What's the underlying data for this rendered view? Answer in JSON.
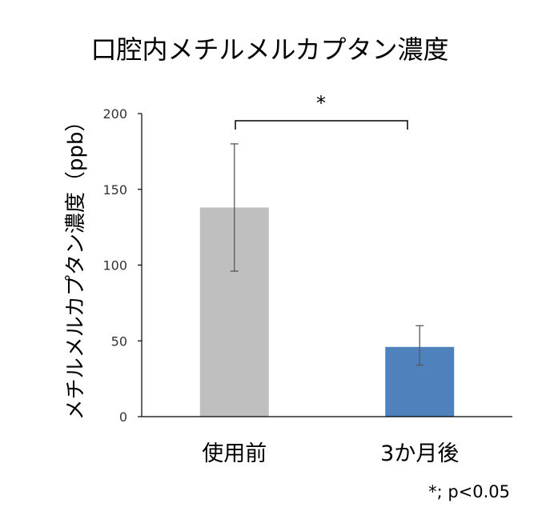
{
  "chart_data": {
    "type": "bar",
    "title": "口腔内メチルメルカプタン濃度",
    "xlabel": "",
    "ylabel": "メチルメルカプタン濃度（ppb）",
    "ylim": [
      0,
      200
    ],
    "yticks": [
      0,
      50,
      100,
      150,
      200
    ],
    "categories": [
      "使用前",
      "3か月後"
    ],
    "values": [
      138,
      46
    ],
    "error_low": [
      96,
      34
    ],
    "error_high": [
      180,
      60
    ],
    "colors": [
      "#bfbfbf",
      "#4f81bd"
    ],
    "grid": false,
    "legend": "none",
    "significance": {
      "marker": "*",
      "between": [
        0,
        1
      ]
    },
    "footnote": "*; p<0.05"
  }
}
